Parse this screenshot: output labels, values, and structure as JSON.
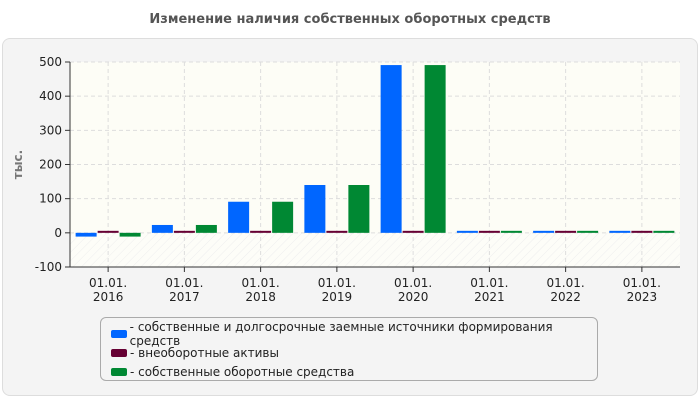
{
  "chart_data": {
    "type": "bar",
    "title": "Изменение наличия собственных оборотных средств",
    "ylabel": "тыс.",
    "xlabel": "",
    "ylim": [
      -100,
      500
    ],
    "yticks": [
      -100,
      0,
      100,
      200,
      300,
      400,
      500
    ],
    "categories": [
      [
        "01.01.",
        "2016"
      ],
      [
        "01.01.",
        "2017"
      ],
      [
        "01.01.",
        "2018"
      ],
      [
        "01.01.",
        "2019"
      ],
      [
        "01.01.",
        "2020"
      ],
      [
        "01.01.",
        "2021"
      ],
      [
        "01.01.",
        "2022"
      ],
      [
        "01.01.",
        "2023"
      ]
    ],
    "series": [
      {
        "name": "- собственные и долгосрочные заемные источники формирования средств",
        "color": "#0066ff",
        "values": [
          -11,
          23,
          91,
          140,
          491,
          2,
          2,
          2
        ]
      },
      {
        "name": "- внеоборотные активы",
        "color": "#660033",
        "values": [
          2,
          2,
          2,
          2,
          2,
          2,
          2,
          2
        ]
      },
      {
        "name": "- собственные оборотные средства",
        "color": "#008833",
        "values": [
          -11,
          23,
          91,
          140,
          491,
          2,
          2,
          2
        ]
      }
    ],
    "grid": true,
    "legend": "bottom"
  }
}
